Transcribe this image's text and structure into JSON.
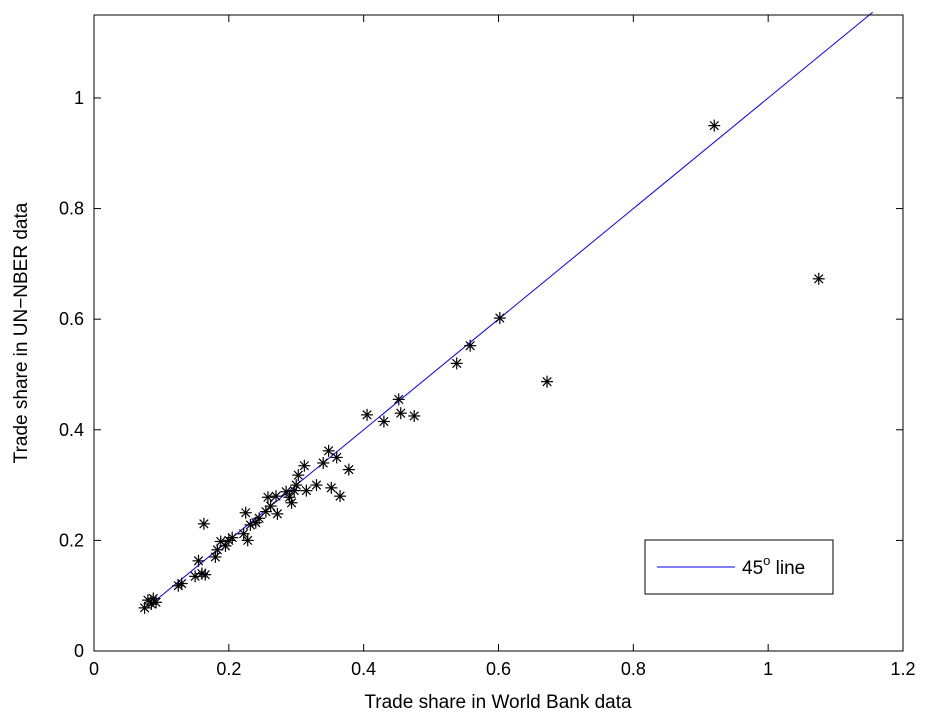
{
  "chart_data": {
    "type": "scatter",
    "xlabel": "Trade share in World Bank data",
    "ylabel": "Trade share in UN−NBER data",
    "xlim": [
      0,
      1.2
    ],
    "ylim": [
      0,
      1.15
    ],
    "xticks": [
      "0",
      "0.2",
      "0.4",
      "0.6",
      "0.8",
      "1",
      "1.2"
    ],
    "yticks": [
      "0",
      "0.2",
      "0.4",
      "0.6",
      "0.8",
      "1"
    ],
    "xtick_values": [
      0,
      0.2,
      0.4,
      0.6,
      0.8,
      1.0,
      1.2
    ],
    "ytick_values": [
      0,
      0.2,
      0.4,
      0.6,
      0.8,
      1.0
    ],
    "grid": false,
    "legend_position": "bottom-right",
    "legend": {
      "prefix": "45",
      "sup": "o",
      "suffix": " line"
    },
    "line": {
      "x": [
        0.075,
        1.155
      ],
      "y": [
        0.075,
        1.155
      ],
      "color": "#0000ff"
    },
    "marker_color": "#000000",
    "points": [
      [
        0.075,
        0.078
      ],
      [
        0.08,
        0.092
      ],
      [
        0.085,
        0.085
      ],
      [
        0.088,
        0.095
      ],
      [
        0.092,
        0.088
      ],
      [
        0.125,
        0.118
      ],
      [
        0.13,
        0.122
      ],
      [
        0.15,
        0.135
      ],
      [
        0.155,
        0.163
      ],
      [
        0.16,
        0.14
      ],
      [
        0.163,
        0.23
      ],
      [
        0.165,
        0.138
      ],
      [
        0.18,
        0.17
      ],
      [
        0.183,
        0.183
      ],
      [
        0.188,
        0.198
      ],
      [
        0.195,
        0.19
      ],
      [
        0.2,
        0.2
      ],
      [
        0.205,
        0.205
      ],
      [
        0.222,
        0.212
      ],
      [
        0.225,
        0.25
      ],
      [
        0.228,
        0.2
      ],
      [
        0.232,
        0.228
      ],
      [
        0.24,
        0.232
      ],
      [
        0.245,
        0.24
      ],
      [
        0.255,
        0.252
      ],
      [
        0.258,
        0.278
      ],
      [
        0.262,
        0.262
      ],
      [
        0.27,
        0.28
      ],
      [
        0.272,
        0.248
      ],
      [
        0.285,
        0.288
      ],
      [
        0.29,
        0.278
      ],
      [
        0.293,
        0.268
      ],
      [
        0.297,
        0.29
      ],
      [
        0.3,
        0.3
      ],
      [
        0.303,
        0.318
      ],
      [
        0.312,
        0.335
      ],
      [
        0.315,
        0.29
      ],
      [
        0.33,
        0.3
      ],
      [
        0.34,
        0.34
      ],
      [
        0.348,
        0.362
      ],
      [
        0.352,
        0.295
      ],
      [
        0.36,
        0.35
      ],
      [
        0.365,
        0.28
      ],
      [
        0.378,
        0.328
      ],
      [
        0.405,
        0.427
      ],
      [
        0.43,
        0.415
      ],
      [
        0.452,
        0.455
      ],
      [
        0.455,
        0.43
      ],
      [
        0.475,
        0.425
      ],
      [
        0.538,
        0.52
      ],
      [
        0.558,
        0.552
      ],
      [
        0.602,
        0.602
      ],
      [
        0.672,
        0.487
      ],
      [
        0.92,
        0.95
      ],
      [
        1.075,
        0.673
      ]
    ]
  }
}
